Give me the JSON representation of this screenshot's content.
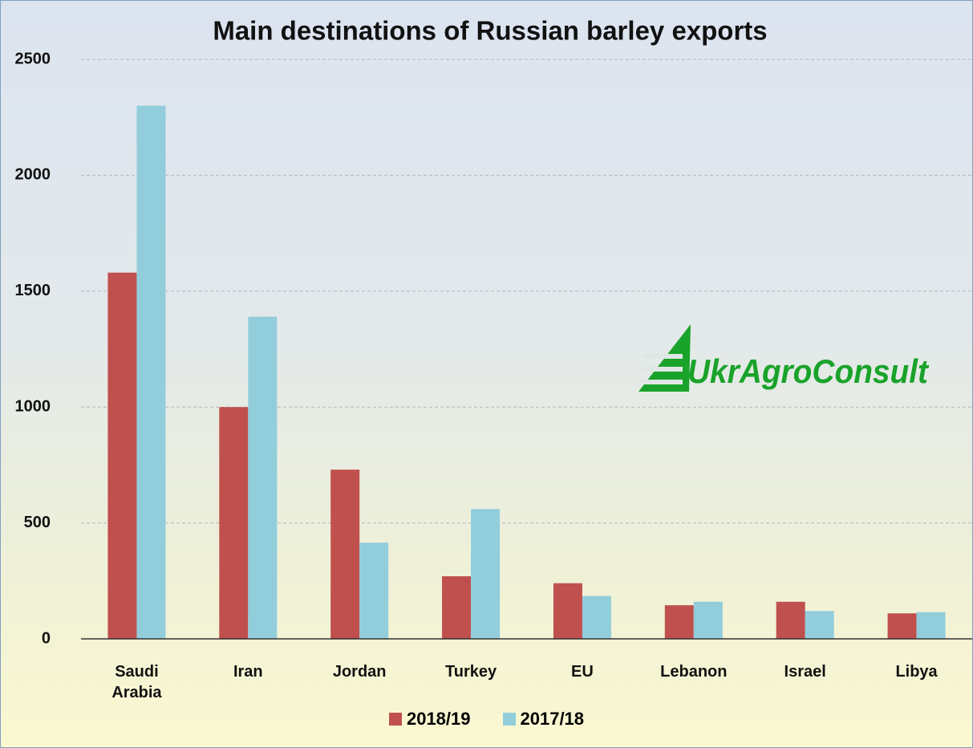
{
  "chart_data": {
    "type": "bar",
    "title": "Main destinations of Russian barley exports",
    "annotation": "UkrAgroConsult",
    "categories": [
      "Saudi Arabia",
      "Iran",
      "Jordan",
      "Turkey",
      "EU",
      "Lebanon",
      "Israel",
      "Libya"
    ],
    "series": [
      {
        "name": "2018/19",
        "color": "#c0504d",
        "values": [
          1580,
          1000,
          730,
          270,
          240,
          145,
          160,
          110
        ]
      },
      {
        "name": "2017/18",
        "color": "#92cddc",
        "values": [
          2300,
          1390,
          415,
          560,
          185,
          160,
          120,
          115
        ]
      }
    ],
    "ylim": [
      0,
      2500
    ],
    "yticks": [
      0,
      500,
      1000,
      1500,
      2000,
      2500
    ],
    "grid": true,
    "legend": "bottom"
  }
}
